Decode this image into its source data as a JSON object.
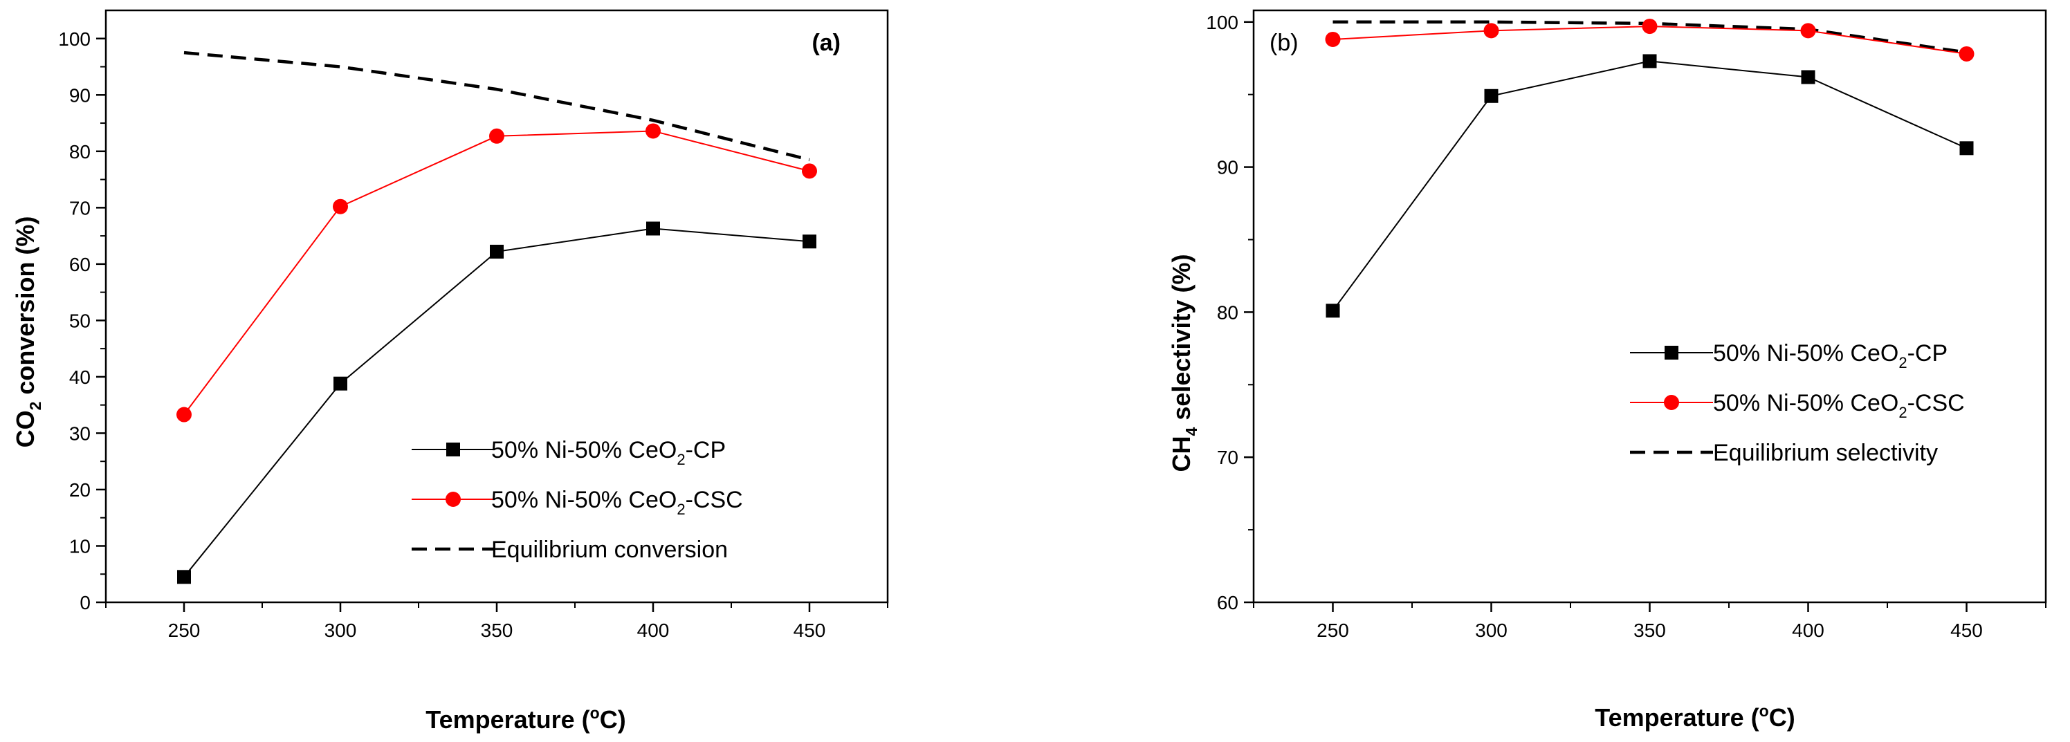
{
  "chart_data": [
    {
      "type": "line",
      "panel_label": "(a)",
      "panel_label_bold": true,
      "xlabel": "Temperature (°C)",
      "xlabel_parts": {
        "pre": "Temperature (",
        "sup": "o",
        "post": "C)"
      },
      "ylabel": "CO2 conversion (%)",
      "ylabel_parts": {
        "pre": "CO",
        "sub": "2",
        "post": " conversion (%)"
      },
      "xlim": [
        225,
        475
      ],
      "ylim": [
        0,
        105
      ],
      "xticks": [
        250,
        300,
        350,
        400,
        450
      ],
      "yticks": [
        0,
        10,
        20,
        30,
        40,
        50,
        60,
        70,
        80,
        90,
        100
      ],
      "x": [
        250,
        300,
        350,
        400,
        450
      ],
      "legend_position": "lower-right",
      "series": [
        {
          "name": "50% Ni-50% CeO2-CP",
          "name_parts": {
            "pre": "50% Ni-50% CeO",
            "sub": "2",
            "post": "-CP"
          },
          "values": [
            4.5,
            38.8,
            62.2,
            66.3,
            64.0
          ],
          "color": "#000000",
          "marker": "square",
          "style": "solid"
        },
        {
          "name": "50% Ni-50% CeO2-CSC",
          "name_parts": {
            "pre": "50% Ni-50% CeO",
            "sub": "2",
            "post": "-CSC"
          },
          "values": [
            33.3,
            70.2,
            82.7,
            83.6,
            76.5
          ],
          "color": "#ff0000",
          "marker": "circle",
          "style": "solid"
        },
        {
          "name": "Equilibrium conversion",
          "name_parts": {
            "pre": "Equilibrium conversion",
            "sub": "",
            "post": ""
          },
          "values": [
            97.5,
            95.0,
            91.0,
            85.5,
            78.5
          ],
          "color": "#000000",
          "marker": "none",
          "style": "dashed"
        }
      ]
    },
    {
      "type": "line",
      "panel_label": "(b)",
      "panel_label_bold": false,
      "xlabel": "Temperature (°C)",
      "xlabel_parts": {
        "pre": "Temperature (",
        "sup": "o",
        "post": "C)"
      },
      "ylabel": "CH4 selectivity (%)",
      "ylabel_parts": {
        "pre": "CH",
        "sub": "4",
        "post": " selectivity (%)"
      },
      "xlim": [
        225,
        475
      ],
      "ylim": [
        60,
        100.8
      ],
      "xticks": [
        250,
        300,
        350,
        400,
        450
      ],
      "yticks": [
        60,
        70,
        80,
        90,
        100
      ],
      "x": [
        250,
        300,
        350,
        400,
        450
      ],
      "legend_position": "center-right",
      "series": [
        {
          "name": "50% Ni-50% CeO2-CP",
          "name_parts": {
            "pre": "50% Ni-50% CeO",
            "sub": "2",
            "post": "-CP"
          },
          "values": [
            80.1,
            94.9,
            97.3,
            96.2,
            91.3
          ],
          "color": "#000000",
          "marker": "square",
          "style": "solid"
        },
        {
          "name": "50% Ni-50% CeO2-CSC",
          "name_parts": {
            "pre": "50% Ni-50% CeO",
            "sub": "2",
            "post": "-CSC"
          },
          "values": [
            98.8,
            99.4,
            99.7,
            99.4,
            97.8
          ],
          "color": "#ff0000",
          "marker": "circle",
          "style": "solid"
        },
        {
          "name": "Equilibrium selectivity",
          "name_parts": {
            "pre": "Equilibrium selectivity",
            "sub": "",
            "post": ""
          },
          "values": [
            100.0,
            100.0,
            99.9,
            99.5,
            97.9
          ],
          "color": "#000000",
          "marker": "none",
          "style": "dashed"
        }
      ]
    }
  ]
}
